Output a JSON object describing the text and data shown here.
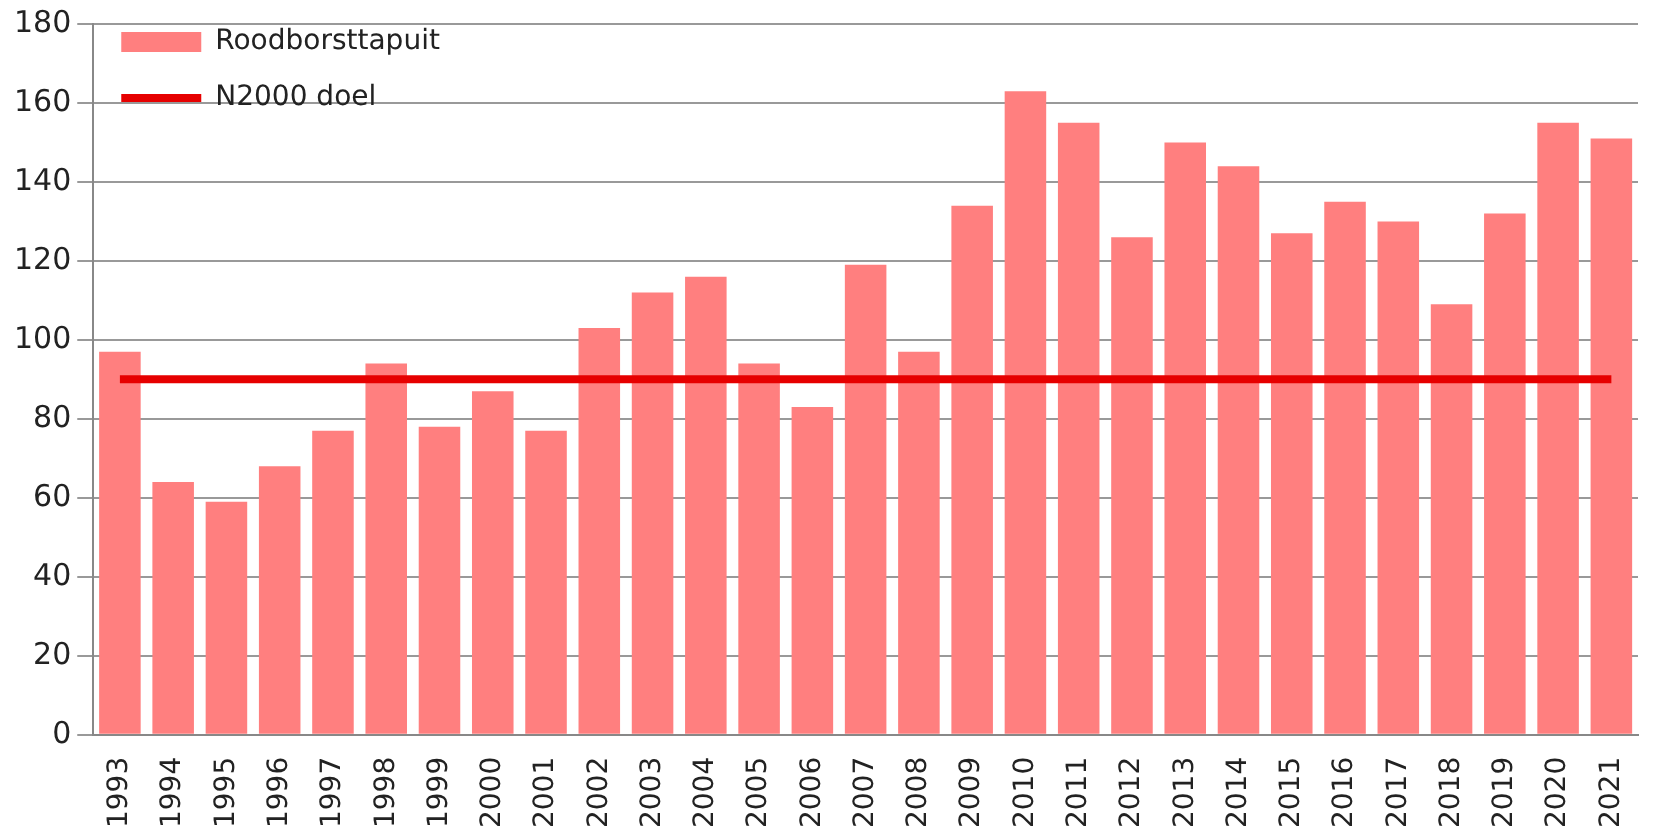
{
  "chart_data": {
    "type": "bar",
    "categories": [
      "1993",
      "1994",
      "1995",
      "1996",
      "1997",
      "1998",
      "1999",
      "2000",
      "2001",
      "2002",
      "2003",
      "2004",
      "2005",
      "2006",
      "2007",
      "2008",
      "2009",
      "2010",
      "2011",
      "2012",
      "2013",
      "2014",
      "2015",
      "2016",
      "2017",
      "2018",
      "2019",
      "2020",
      "2021"
    ],
    "series": [
      {
        "name": "Roodborsttapuit",
        "color": "#ff7f7f",
        "values": [
          97,
          64,
          59,
          68,
          77,
          94,
          78,
          87,
          77,
          103,
          112,
          116,
          94,
          83,
          119,
          97,
          134,
          163,
          155,
          126,
          150,
          144,
          127,
          135,
          130,
          109,
          132,
          155,
          151
        ]
      },
      {
        "name": "N2000 doel",
        "type": "line",
        "color": "#e60000",
        "values": [
          90,
          90,
          90,
          90,
          90,
          90,
          90,
          90,
          90,
          90,
          90,
          90,
          90,
          90,
          90,
          90,
          90,
          90,
          90,
          90,
          90,
          90,
          90,
          90,
          90,
          90,
          90,
          90,
          90
        ]
      }
    ],
    "ylim": [
      0,
      180
    ],
    "yticks": [
      0,
      20,
      40,
      60,
      80,
      100,
      120,
      140,
      160,
      180
    ],
    "grid": "y",
    "legend": "top left",
    "marker": "none"
  }
}
